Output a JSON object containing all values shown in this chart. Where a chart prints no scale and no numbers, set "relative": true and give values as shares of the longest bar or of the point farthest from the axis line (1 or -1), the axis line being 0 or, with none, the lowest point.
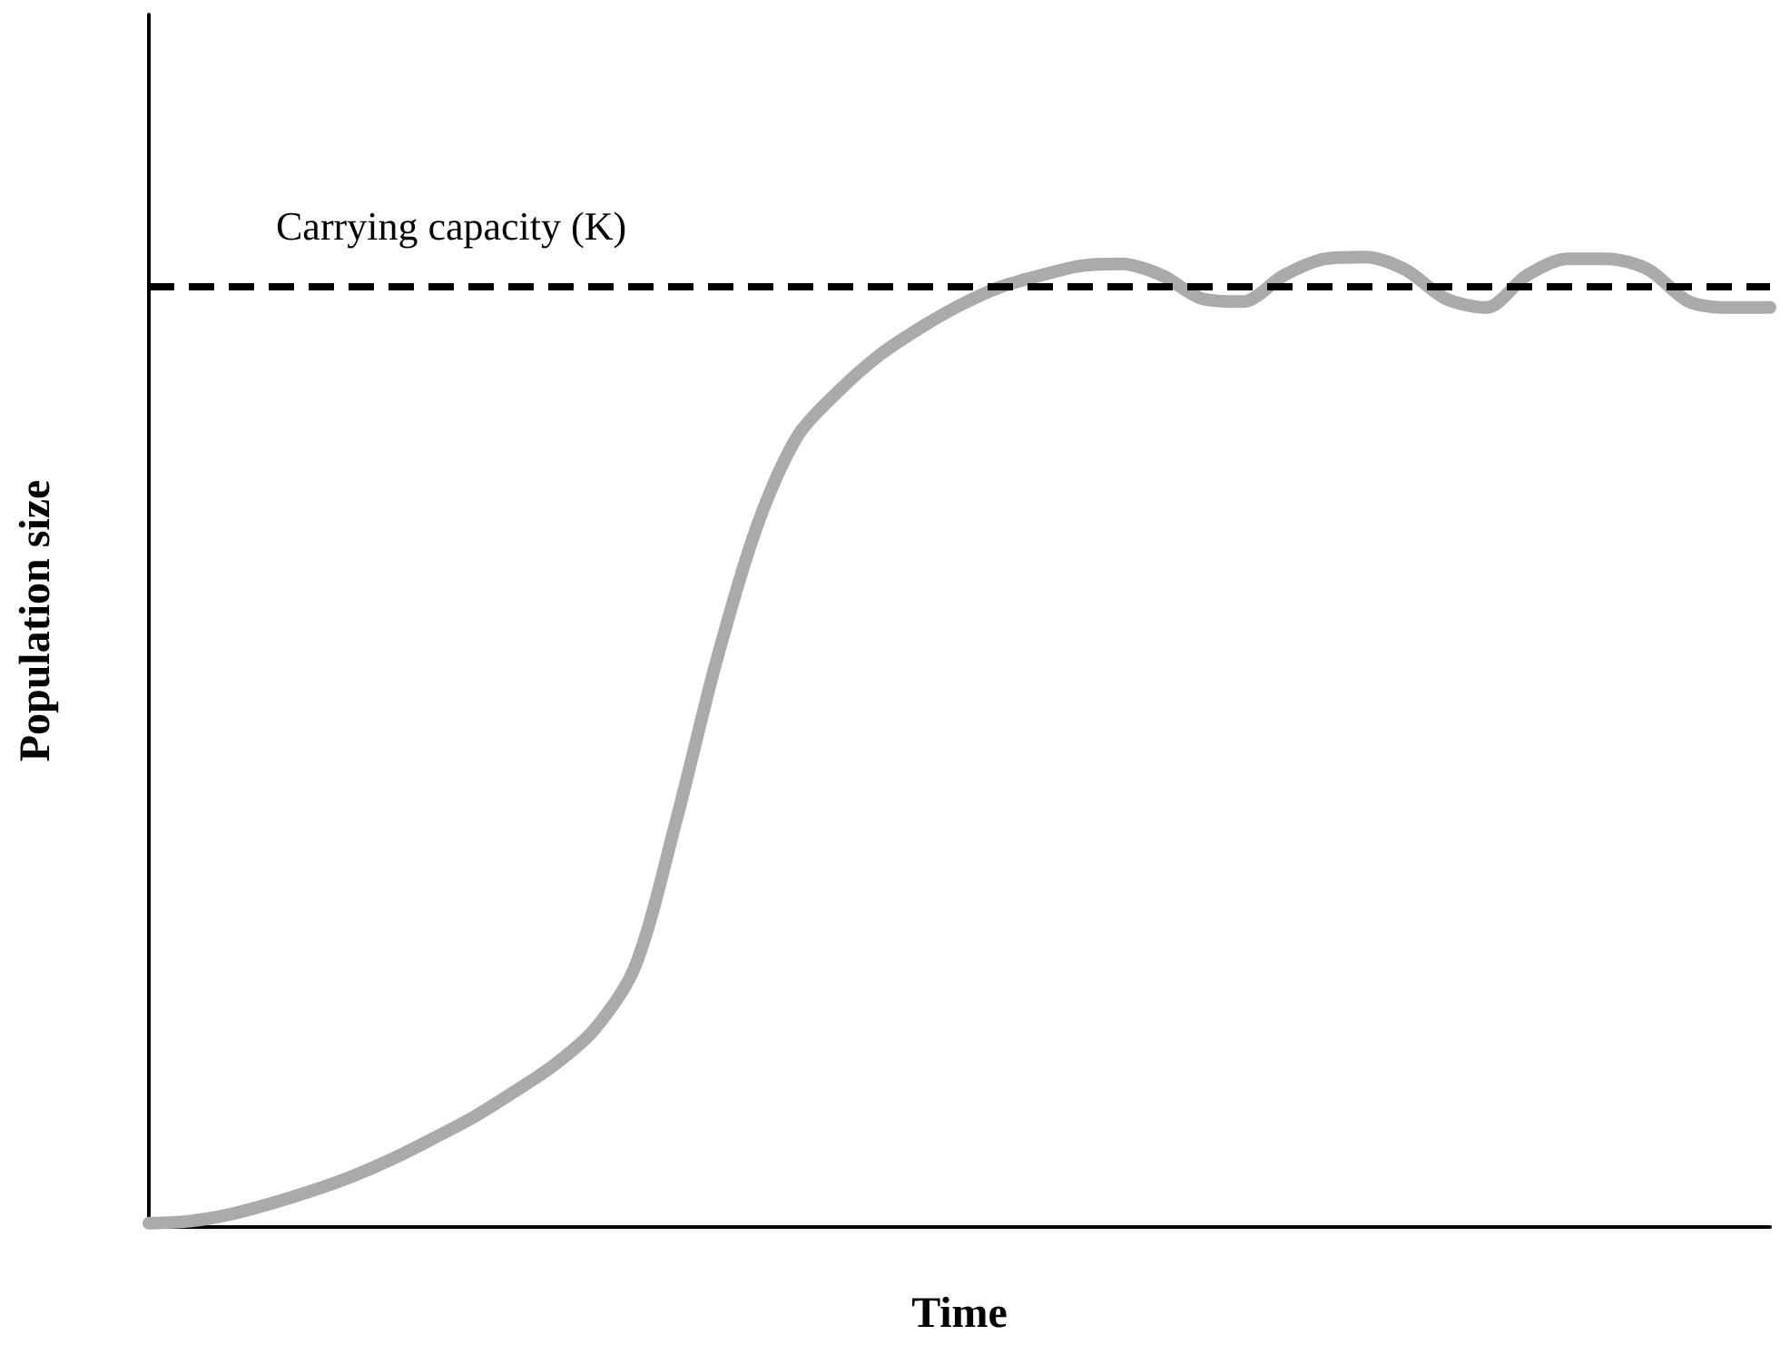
{
  "chart_data": {
    "type": "line",
    "relative": true,
    "xlabel": "Time",
    "ylabel": "Population size",
    "grid": false,
    "line_style": "solid",
    "categories": [
      null,
      null,
      null,
      null,
      null,
      null,
      null,
      null,
      null,
      null,
      null,
      null,
      null,
      null,
      null,
      null,
      null,
      null,
      null,
      null,
      null,
      null,
      null,
      null,
      null,
      null,
      null,
      null,
      null,
      null,
      null,
      null,
      null,
      null,
      null,
      null,
      null,
      null,
      null,
      null,
      null
    ],
    "series": [
      {
        "color": "#aaaaaa",
        "values": [
          0.004,
          0.006,
          0.013,
          0.024,
          0.037,
          0.052,
          0.07,
          0.091,
          0.113,
          0.139,
          0.167,
          0.204,
          0.269,
          0.417,
          0.583,
          0.722,
          0.815,
          0.861,
          0.898,
          0.926,
          0.95,
          0.969,
          0.981,
          0.991,
          0.993,
          0.981,
          0.957,
          0.954,
          0.981,
          0.998,
          1.0,
          0.987,
          0.957,
          0.948,
          0.981,
          0.998,
          0.998,
          0.987,
          0.954,
          0.948,
          0.948
        ]
      }
    ],
    "ref_lines": [
      {
        "axis": "y",
        "value": 0.972,
        "label": "Carrying capacity (K)",
        "color": "#000000",
        "line_style": "dashed"
      }
    ]
  }
}
